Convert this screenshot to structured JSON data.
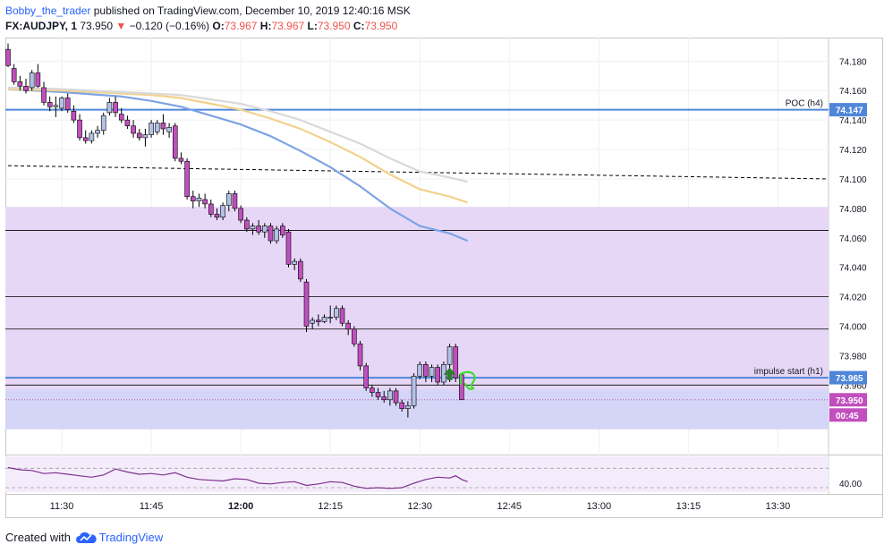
{
  "header": {
    "author": "Bobby_the_trader",
    "published": "published on TradingView.com, December 10, 2019 12:40:16 MSK",
    "symbol": "FX:AUDJPY, 1",
    "last": "73.950",
    "change_arrow": "▼",
    "change": "−0.120 (−0.16%)",
    "o_label": "O:",
    "o_value": "73.967",
    "h_label": "H:",
    "h_value": "73.967",
    "l_label": "L:",
    "l_value": "73.950",
    "c_label": "C:",
    "c_value": "73.950"
  },
  "footer": {
    "created_with": "Created with",
    "brand": "TradingView",
    "logo_icon": "tradingview-cloud-icon"
  },
  "colors": {
    "bull_candle": "#b3c1e6",
    "bear_candle": "#c14fbe",
    "candle_outline": "#000000",
    "poc_line": "#4f86d9",
    "impulse_line": "#4f86d9",
    "zone_fill": "#e7d7f7",
    "lower_zone_fill": "#d5d5f7",
    "ma_blue": "#7ca3e3",
    "ma_orange": "#f2d18c",
    "ma_grey": "#d9d9d9",
    "price_label_bg": "#c14fbe",
    "oscillator_line": "#7e2f8e",
    "arrow_green": "#2e7d32",
    "hand_drawn_green": "#3ddc2e"
  },
  "chart_data": {
    "type": "candlestick",
    "symbol": "FX:AUDJPY",
    "timeframe": "1",
    "title": "",
    "y_range": [
      73.914,
      74.196
    ],
    "x_time_range": [
      "11:21",
      "13:38"
    ],
    "y_ticks": [
      74.18,
      74.16,
      74.14,
      74.12,
      74.1,
      74.08,
      74.06,
      74.04,
      74.02,
      74.0,
      73.98,
      73.96
    ],
    "y_tick_labels": [
      "74.180",
      "74.160",
      "74.140",
      "74.120",
      "74.100",
      "74.080",
      "74.060",
      "74.040",
      "74.020",
      "74.000",
      "73.980",
      "73.960"
    ],
    "x_ticks": [
      "11:30",
      "11:45",
      "12:00",
      "12:15",
      "12:30",
      "12:45",
      "13:00",
      "13:15",
      "13:30"
    ],
    "x_tick_times": [
      "11:30",
      "11:45",
      "12:00",
      "12:15",
      "12:30",
      "12:45",
      "13:00",
      "13:15",
      "13:30"
    ],
    "candles": [
      {
        "t": "11:21",
        "o": 74.188,
        "h": 74.192,
        "l": 74.176,
        "c": 74.177
      },
      {
        "t": "11:22",
        "o": 74.175,
        "h": 74.178,
        "l": 74.164,
        "c": 74.166
      },
      {
        "t": "11:23",
        "o": 74.166,
        "h": 74.17,
        "l": 74.16,
        "c": 74.163
      },
      {
        "t": "11:24",
        "o": 74.163,
        "h": 74.168,
        "l": 74.158,
        "c": 74.16
      },
      {
        "t": "11:25",
        "o": 74.162,
        "h": 74.174,
        "l": 74.16,
        "c": 74.172
      },
      {
        "t": "11:26",
        "o": 74.172,
        "h": 74.178,
        "l": 74.162,
        "c": 74.163
      },
      {
        "t": "11:27",
        "o": 74.162,
        "h": 74.166,
        "l": 74.15,
        "c": 74.152
      },
      {
        "t": "11:28",
        "o": 74.152,
        "h": 74.156,
        "l": 74.146,
        "c": 74.149
      },
      {
        "t": "11:29",
        "o": 74.149,
        "h": 74.156,
        "l": 74.142,
        "c": 74.15
      },
      {
        "t": "11:30",
        "o": 74.148,
        "h": 74.156,
        "l": 74.146,
        "c": 74.155
      },
      {
        "t": "11:31",
        "o": 74.155,
        "h": 74.158,
        "l": 74.145,
        "c": 74.147
      },
      {
        "t": "11:32",
        "o": 74.146,
        "h": 74.15,
        "l": 74.138,
        "c": 74.14
      },
      {
        "t": "11:33",
        "o": 74.14,
        "h": 74.144,
        "l": 74.126,
        "c": 74.128
      },
      {
        "t": "11:34",
        "o": 74.128,
        "h": 74.133,
        "l": 74.124,
        "c": 74.126
      },
      {
        "t": "11:35",
        "o": 74.126,
        "h": 74.133,
        "l": 74.124,
        "c": 74.131
      },
      {
        "t": "11:36",
        "o": 74.131,
        "h": 74.136,
        "l": 74.128,
        "c": 74.133
      },
      {
        "t": "11:37",
        "o": 74.133,
        "h": 74.145,
        "l": 74.13,
        "c": 74.143
      },
      {
        "t": "11:38",
        "o": 74.145,
        "h": 74.155,
        "l": 74.143,
        "c": 74.152
      },
      {
        "t": "11:39",
        "o": 74.152,
        "h": 74.156,
        "l": 74.142,
        "c": 74.145
      },
      {
        "t": "11:40",
        "o": 74.144,
        "h": 74.148,
        "l": 74.138,
        "c": 74.14
      },
      {
        "t": "11:41",
        "o": 74.14,
        "h": 74.143,
        "l": 74.134,
        "c": 74.136
      },
      {
        "t": "11:42",
        "o": 74.136,
        "h": 74.14,
        "l": 74.128,
        "c": 74.131
      },
      {
        "t": "11:43",
        "o": 74.131,
        "h": 74.134,
        "l": 74.126,
        "c": 74.128
      },
      {
        "t": "11:44",
        "o": 74.128,
        "h": 74.134,
        "l": 74.122,
        "c": 74.13
      },
      {
        "t": "11:45",
        "o": 74.13,
        "h": 74.14,
        "l": 74.128,
        "c": 74.138
      },
      {
        "t": "11:46",
        "o": 74.132,
        "h": 74.14,
        "l": 74.13,
        "c": 74.138
      },
      {
        "t": "11:47",
        "o": 74.138,
        "h": 74.144,
        "l": 74.13,
        "c": 74.134
      },
      {
        "t": "11:48",
        "o": 74.132,
        "h": 74.138,
        "l": 74.128,
        "c": 74.135
      },
      {
        "t": "11:49",
        "o": 74.136,
        "h": 74.138,
        "l": 74.112,
        "c": 74.114
      },
      {
        "t": "11:50",
        "o": 74.114,
        "h": 74.118,
        "l": 74.11,
        "c": 74.112
      },
      {
        "t": "11:51",
        "o": 74.112,
        "h": 74.114,
        "l": 74.086,
        "c": 74.088
      },
      {
        "t": "11:52",
        "o": 74.088,
        "h": 74.092,
        "l": 74.08,
        "c": 74.085
      },
      {
        "t": "11:53",
        "o": 74.085,
        "h": 74.09,
        "l": 74.081,
        "c": 74.087
      },
      {
        "t": "11:54",
        "o": 74.086,
        "h": 74.09,
        "l": 74.08,
        "c": 74.083
      },
      {
        "t": "11:55",
        "o": 74.083,
        "h": 74.086,
        "l": 74.074,
        "c": 74.076
      },
      {
        "t": "11:56",
        "o": 74.076,
        "h": 74.08,
        "l": 74.072,
        "c": 74.074
      },
      {
        "t": "11:57",
        "o": 74.074,
        "h": 74.084,
        "l": 74.072,
        "c": 74.082
      },
      {
        "t": "11:58",
        "o": 74.082,
        "h": 74.092,
        "l": 74.078,
        "c": 74.09
      },
      {
        "t": "11:59",
        "o": 74.09,
        "h": 74.092,
        "l": 74.078,
        "c": 74.08
      },
      {
        "t": "12:00",
        "o": 74.08,
        "h": 74.082,
        "l": 74.07,
        "c": 74.072
      },
      {
        "t": "12:01",
        "o": 74.072,
        "h": 74.074,
        "l": 74.064,
        "c": 74.066
      },
      {
        "t": "12:02",
        "o": 74.066,
        "h": 74.07,
        "l": 74.062,
        "c": 74.068
      },
      {
        "t": "12:03",
        "o": 74.068,
        "h": 74.072,
        "l": 74.062,
        "c": 74.064
      },
      {
        "t": "12:04",
        "o": 74.064,
        "h": 74.07,
        "l": 74.06,
        "c": 74.068
      },
      {
        "t": "12:05",
        "o": 74.068,
        "h": 74.07,
        "l": 74.056,
        "c": 74.058
      },
      {
        "t": "12:06",
        "o": 74.058,
        "h": 74.068,
        "l": 74.056,
        "c": 74.066
      },
      {
        "t": "12:07",
        "o": 74.068,
        "h": 74.07,
        "l": 74.06,
        "c": 74.062
      },
      {
        "t": "12:08",
        "o": 74.064,
        "h": 74.066,
        "l": 74.04,
        "c": 74.042
      },
      {
        "t": "12:09",
        "o": 74.042,
        "h": 74.046,
        "l": 74.038,
        "c": 74.044
      },
      {
        "t": "12:10",
        "o": 74.044,
        "h": 74.046,
        "l": 74.03,
        "c": 74.032
      },
      {
        "t": "12:11",
        "o": 74.03,
        "h": 74.032,
        "l": 73.996,
        "c": 74.0
      },
      {
        "t": "12:12",
        "o": 74.002,
        "h": 74.006,
        "l": 73.998,
        "c": 74.004
      },
      {
        "t": "12:13",
        "o": 74.004,
        "h": 74.008,
        "l": 74.0,
        "c": 74.003
      },
      {
        "t": "12:14",
        "o": 74.003,
        "h": 74.008,
        "l": 74.002,
        "c": 74.006
      },
      {
        "t": "12:15",
        "o": 74.006,
        "h": 74.014,
        "l": 74.002,
        "c": 74.006
      },
      {
        "t": "12:16",
        "o": 74.006,
        "h": 74.014,
        "l": 74.004,
        "c": 74.012
      },
      {
        "t": "12:17",
        "o": 74.012,
        "h": 74.014,
        "l": 74.0,
        "c": 74.002
      },
      {
        "t": "12:18",
        "o": 74.002,
        "h": 74.004,
        "l": 73.994,
        "c": 73.998
      },
      {
        "t": "12:19",
        "o": 73.998,
        "h": 74.0,
        "l": 73.986,
        "c": 73.988
      },
      {
        "t": "12:20",
        "o": 73.988,
        "h": 73.99,
        "l": 73.97,
        "c": 73.973
      },
      {
        "t": "12:21",
        "o": 73.973,
        "h": 73.975,
        "l": 73.956,
        "c": 73.958
      },
      {
        "t": "12:22",
        "o": 73.958,
        "h": 73.96,
        "l": 73.952,
        "c": 73.955
      },
      {
        "t": "12:23",
        "o": 73.955,
        "h": 73.958,
        "l": 73.95,
        "c": 73.952
      },
      {
        "t": "12:24",
        "o": 73.952,
        "h": 73.956,
        "l": 73.948,
        "c": 73.95
      },
      {
        "t": "12:25",
        "o": 73.95,
        "h": 73.958,
        "l": 73.946,
        "c": 73.956
      },
      {
        "t": "12:26",
        "o": 73.956,
        "h": 73.958,
        "l": 73.946,
        "c": 73.948
      },
      {
        "t": "12:27",
        "o": 73.948,
        "h": 73.95,
        "l": 73.942,
        "c": 73.944
      },
      {
        "t": "12:28",
        "o": 73.944,
        "h": 73.949,
        "l": 73.938,
        "c": 73.946
      },
      {
        "t": "12:29",
        "o": 73.946,
        "h": 73.968,
        "l": 73.944,
        "c": 73.966
      },
      {
        "t": "12:30",
        "o": 73.966,
        "h": 73.976,
        "l": 73.964,
        "c": 73.974
      },
      {
        "t": "12:31",
        "o": 73.974,
        "h": 73.976,
        "l": 73.962,
        "c": 73.966
      },
      {
        "t": "12:32",
        "o": 73.966,
        "h": 73.974,
        "l": 73.962,
        "c": 73.972
      },
      {
        "t": "12:33",
        "o": 73.972,
        "h": 73.974,
        "l": 73.96,
        "c": 73.962
      },
      {
        "t": "12:34",
        "o": 73.962,
        "h": 73.976,
        "l": 73.96,
        "c": 73.974
      },
      {
        "t": "12:35",
        "o": 73.974,
        "h": 73.988,
        "l": 73.962,
        "c": 73.986
      },
      {
        "t": "12:36",
        "o": 73.986,
        "h": 73.988,
        "l": 73.962,
        "c": 73.965
      },
      {
        "t": "12:37",
        "o": 73.967,
        "h": 73.967,
        "l": 73.95,
        "c": 73.95
      }
    ],
    "moving_averages": [
      {
        "color": "#7ca3e3",
        "points": [
          [
            "11:21",
            74.161
          ],
          [
            "11:30",
            74.159
          ],
          [
            "11:40",
            74.156
          ],
          [
            "11:45",
            74.153
          ],
          [
            "11:50",
            74.149
          ],
          [
            "11:55",
            74.143
          ],
          [
            "12:00",
            74.137
          ],
          [
            "12:05",
            74.129
          ],
          [
            "12:10",
            74.119
          ],
          [
            "12:15",
            74.108
          ],
          [
            "12:20",
            74.095
          ],
          [
            "12:25",
            74.08
          ],
          [
            "12:30",
            74.068
          ],
          [
            "12:35",
            74.063
          ],
          [
            "12:38",
            74.058
          ]
        ]
      },
      {
        "color": "#f2d18c",
        "points": [
          [
            "11:21",
            74.161
          ],
          [
            "11:30",
            74.16
          ],
          [
            "11:40",
            74.158
          ],
          [
            "11:45",
            74.157
          ],
          [
            "11:50",
            74.155
          ],
          [
            "11:55",
            74.151
          ],
          [
            "12:00",
            74.147
          ],
          [
            "12:05",
            74.141
          ],
          [
            "12:10",
            74.134
          ],
          [
            "12:15",
            74.125
          ],
          [
            "12:20",
            74.115
          ],
          [
            "12:25",
            74.103
          ],
          [
            "12:30",
            74.093
          ],
          [
            "12:35",
            74.088
          ],
          [
            "12:38",
            74.084
          ]
        ]
      },
      {
        "color": "#d9d9d9",
        "points": [
          [
            "11:21",
            74.162
          ],
          [
            "11:30",
            74.161
          ],
          [
            "11:40",
            74.159
          ],
          [
            "11:45",
            74.158
          ],
          [
            "11:50",
            74.157
          ],
          [
            "11:55",
            74.154
          ],
          [
            "12:00",
            74.151
          ],
          [
            "12:05",
            74.146
          ],
          [
            "12:10",
            74.14
          ],
          [
            "12:15",
            74.132
          ],
          [
            "12:20",
            74.124
          ],
          [
            "12:25",
            74.114
          ],
          [
            "12:30",
            74.105
          ],
          [
            "12:35",
            74.101
          ],
          [
            "12:38",
            74.098
          ]
        ]
      }
    ],
    "horizontal_levels": [
      {
        "price": 74.147,
        "style": "solid",
        "color": "#4f86d9",
        "label": "POC (h4)",
        "axis_label": "74.147"
      },
      {
        "price": 73.965,
        "style": "solid",
        "color": "#4f86d9",
        "label": "impulse start (h1)",
        "axis_label": "73.965"
      },
      {
        "price": 74.065,
        "style": "thin-black"
      },
      {
        "price": 74.02,
        "style": "thin-black"
      },
      {
        "price": 73.998,
        "style": "thin-black"
      },
      {
        "price": 73.96,
        "style": "thin-black"
      },
      {
        "price": 73.95,
        "style": "dotted",
        "color": "#c14fbe",
        "axis_label": "73.950"
      }
    ],
    "trend_line": {
      "style": "dashed",
      "from": [
        "11:21",
        74.109
      ],
      "to": [
        "13:38",
        74.1
      ]
    },
    "zones": [
      {
        "top": 74.081,
        "bottom": 73.93,
        "color": "#e7d7f7"
      },
      {
        "top": 73.957,
        "bottom": 73.93,
        "color": "#d5d5f7"
      }
    ],
    "countdown_label": "00:45",
    "oscillator": {
      "ticks": [
        40.0
      ],
      "tick_labels": [
        "40.00"
      ],
      "y_range": [
        34,
        58
      ],
      "guides": [
        50,
        37
      ],
      "points": [
        [
          "11:21",
          50.5
        ],
        [
          "11:23",
          49
        ],
        [
          "11:25",
          48.5
        ],
        [
          "11:27",
          46.5
        ],
        [
          "11:29",
          47
        ],
        [
          "11:31",
          46
        ],
        [
          "11:33",
          45
        ],
        [
          "11:35",
          44
        ],
        [
          "11:37",
          45.5
        ],
        [
          "11:39",
          49.5
        ],
        [
          "11:41",
          47.5
        ],
        [
          "11:43",
          46
        ],
        [
          "11:45",
          46.5
        ],
        [
          "11:47",
          45.5
        ],
        [
          "11:49",
          47
        ],
        [
          "11:51",
          44
        ],
        [
          "11:53",
          42.5
        ],
        [
          "11:55",
          42
        ],
        [
          "11:57",
          41.5
        ],
        [
          "11:59",
          43
        ],
        [
          "12:01",
          42.5
        ],
        [
          "12:03",
          40
        ],
        [
          "12:05",
          39.5
        ],
        [
          "12:07",
          40.5
        ],
        [
          "12:09",
          41
        ],
        [
          "12:11",
          38.5
        ],
        [
          "12:13",
          39.5
        ],
        [
          "12:15",
          41
        ],
        [
          "12:17",
          40.5
        ],
        [
          "12:19",
          38
        ],
        [
          "12:21",
          36.5
        ],
        [
          "12:23",
          37
        ],
        [
          "12:25",
          36.5
        ],
        [
          "12:27",
          37
        ],
        [
          "12:29",
          40
        ],
        [
          "12:31",
          42.5
        ],
        [
          "12:33",
          44
        ],
        [
          "12:35",
          43.5
        ],
        [
          "12:36",
          45
        ],
        [
          "12:37",
          42.5
        ],
        [
          "12:38",
          41
        ]
      ]
    },
    "annotations": [
      {
        "type": "arrow",
        "direction": "up",
        "color": "#2e7d32",
        "at": [
          "12:35",
          73.967
        ]
      },
      {
        "type": "hand-drawn",
        "color": "#3ddc2e",
        "at": [
          "12:37",
          73.962
        ]
      }
    ]
  }
}
